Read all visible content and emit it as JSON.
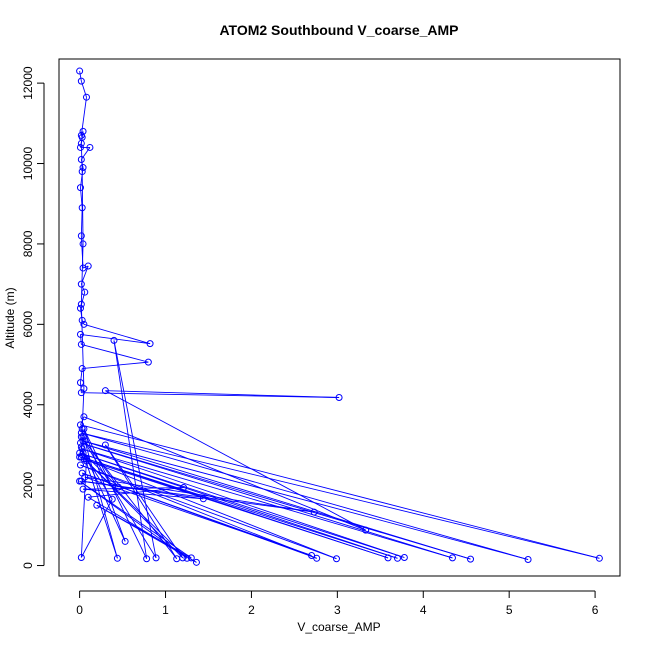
{
  "chart_data": {
    "type": "line",
    "title": "ATOM2 Southbound V_coarse_AMP",
    "xlabel": "V_coarse_AMP",
    "ylabel": "Altitude (m)",
    "xlim": [
      -0.24,
      6.29
    ],
    "ylim": [
      -260,
      12600
    ],
    "x_ticks": [
      0,
      1,
      2,
      3,
      4,
      5,
      6
    ],
    "y_ticks": [
      0,
      2000,
      4000,
      6000,
      8000,
      10000,
      12000
    ],
    "grid": false,
    "legend": "none",
    "series": [
      {
        "color": "#0000ff",
        "marker": "open-circle",
        "points": [
          [
            0.0,
            12300
          ],
          [
            0.02,
            12050
          ],
          [
            0.08,
            11650
          ],
          [
            0.02,
            10700
          ],
          [
            0.03,
            10650
          ],
          [
            0.01,
            10400
          ],
          [
            0.12,
            10400
          ],
          [
            0.02,
            10100
          ],
          [
            0.04,
            9900
          ],
          [
            0.01,
            9400
          ],
          [
            0.03,
            8900
          ],
          [
            0.02,
            8200
          ],
          [
            0.04,
            7400
          ],
          [
            0.1,
            7450
          ],
          [
            0.02,
            7000
          ],
          [
            0.06,
            6800
          ],
          [
            0.01,
            6400
          ],
          [
            0.03,
            6100
          ],
          [
            0.05,
            6000
          ],
          [
            0.82,
            5520
          ],
          [
            0.01,
            5750
          ],
          [
            0.02,
            5500
          ],
          [
            0.8,
            5060
          ],
          [
            0.03,
            4900
          ],
          [
            0.01,
            4550
          ],
          [
            0.02,
            4300
          ],
          [
            3.02,
            4180
          ],
          [
            0.3,
            4350
          ],
          [
            3.33,
            880
          ],
          [
            0.05,
            3700
          ],
          [
            0.01,
            3500
          ],
          [
            6.05,
            180
          ],
          [
            0.02,
            3300
          ],
          [
            5.22,
            150
          ],
          [
            0.04,
            3100
          ],
          [
            4.55,
            160
          ],
          [
            0.01,
            3050
          ],
          [
            4.34,
            190
          ],
          [
            0.03,
            2900
          ],
          [
            3.78,
            200
          ],
          [
            0.0,
            2800
          ],
          [
            3.7,
            180
          ],
          [
            0.02,
            2700
          ],
          [
            3.59,
            190
          ],
          [
            0.05,
            2650
          ],
          [
            2.99,
            170
          ],
          [
            0.01,
            2500
          ],
          [
            2.76,
            180
          ],
          [
            0.03,
            2300
          ],
          [
            2.7,
            250
          ],
          [
            0.06,
            2200
          ],
          [
            2.73,
            1330
          ],
          [
            0.02,
            2100
          ],
          [
            1.44,
            1660
          ],
          [
            0.04,
            1900
          ],
          [
            1.21,
            1940
          ],
          [
            0.1,
            1700
          ],
          [
            1.36,
            80
          ],
          [
            0.2,
            1500
          ],
          [
            1.3,
            190
          ],
          [
            0.0,
            2100
          ],
          [
            1.25,
            180
          ],
          [
            0.08,
            2600
          ],
          [
            1.2,
            190
          ],
          [
            0.3,
            3000
          ],
          [
            1.13,
            170
          ],
          [
            0.02,
            3200
          ],
          [
            0.89,
            190
          ],
          [
            0.4,
            5600
          ],
          [
            0.78,
            170
          ],
          [
            0.05,
            3400
          ],
          [
            0.53,
            600
          ],
          [
            0.02,
            2950
          ],
          [
            0.44,
            180
          ],
          [
            0.06,
            3100
          ],
          [
            0.45,
            1950
          ],
          [
            0.04,
            2800
          ],
          [
            0.38,
            1650
          ],
          [
            0.02,
            200
          ],
          [
            0.08,
            2650
          ],
          [
            0.0,
            2700
          ],
          [
            0.04,
            3200
          ],
          [
            0.03,
            3400
          ],
          [
            0.05,
            4400
          ],
          [
            0.02,
            6500
          ],
          [
            0.04,
            8000
          ],
          [
            0.03,
            9800
          ],
          [
            0.02,
            10500
          ],
          [
            0.04,
            10800
          ]
        ]
      }
    ]
  }
}
